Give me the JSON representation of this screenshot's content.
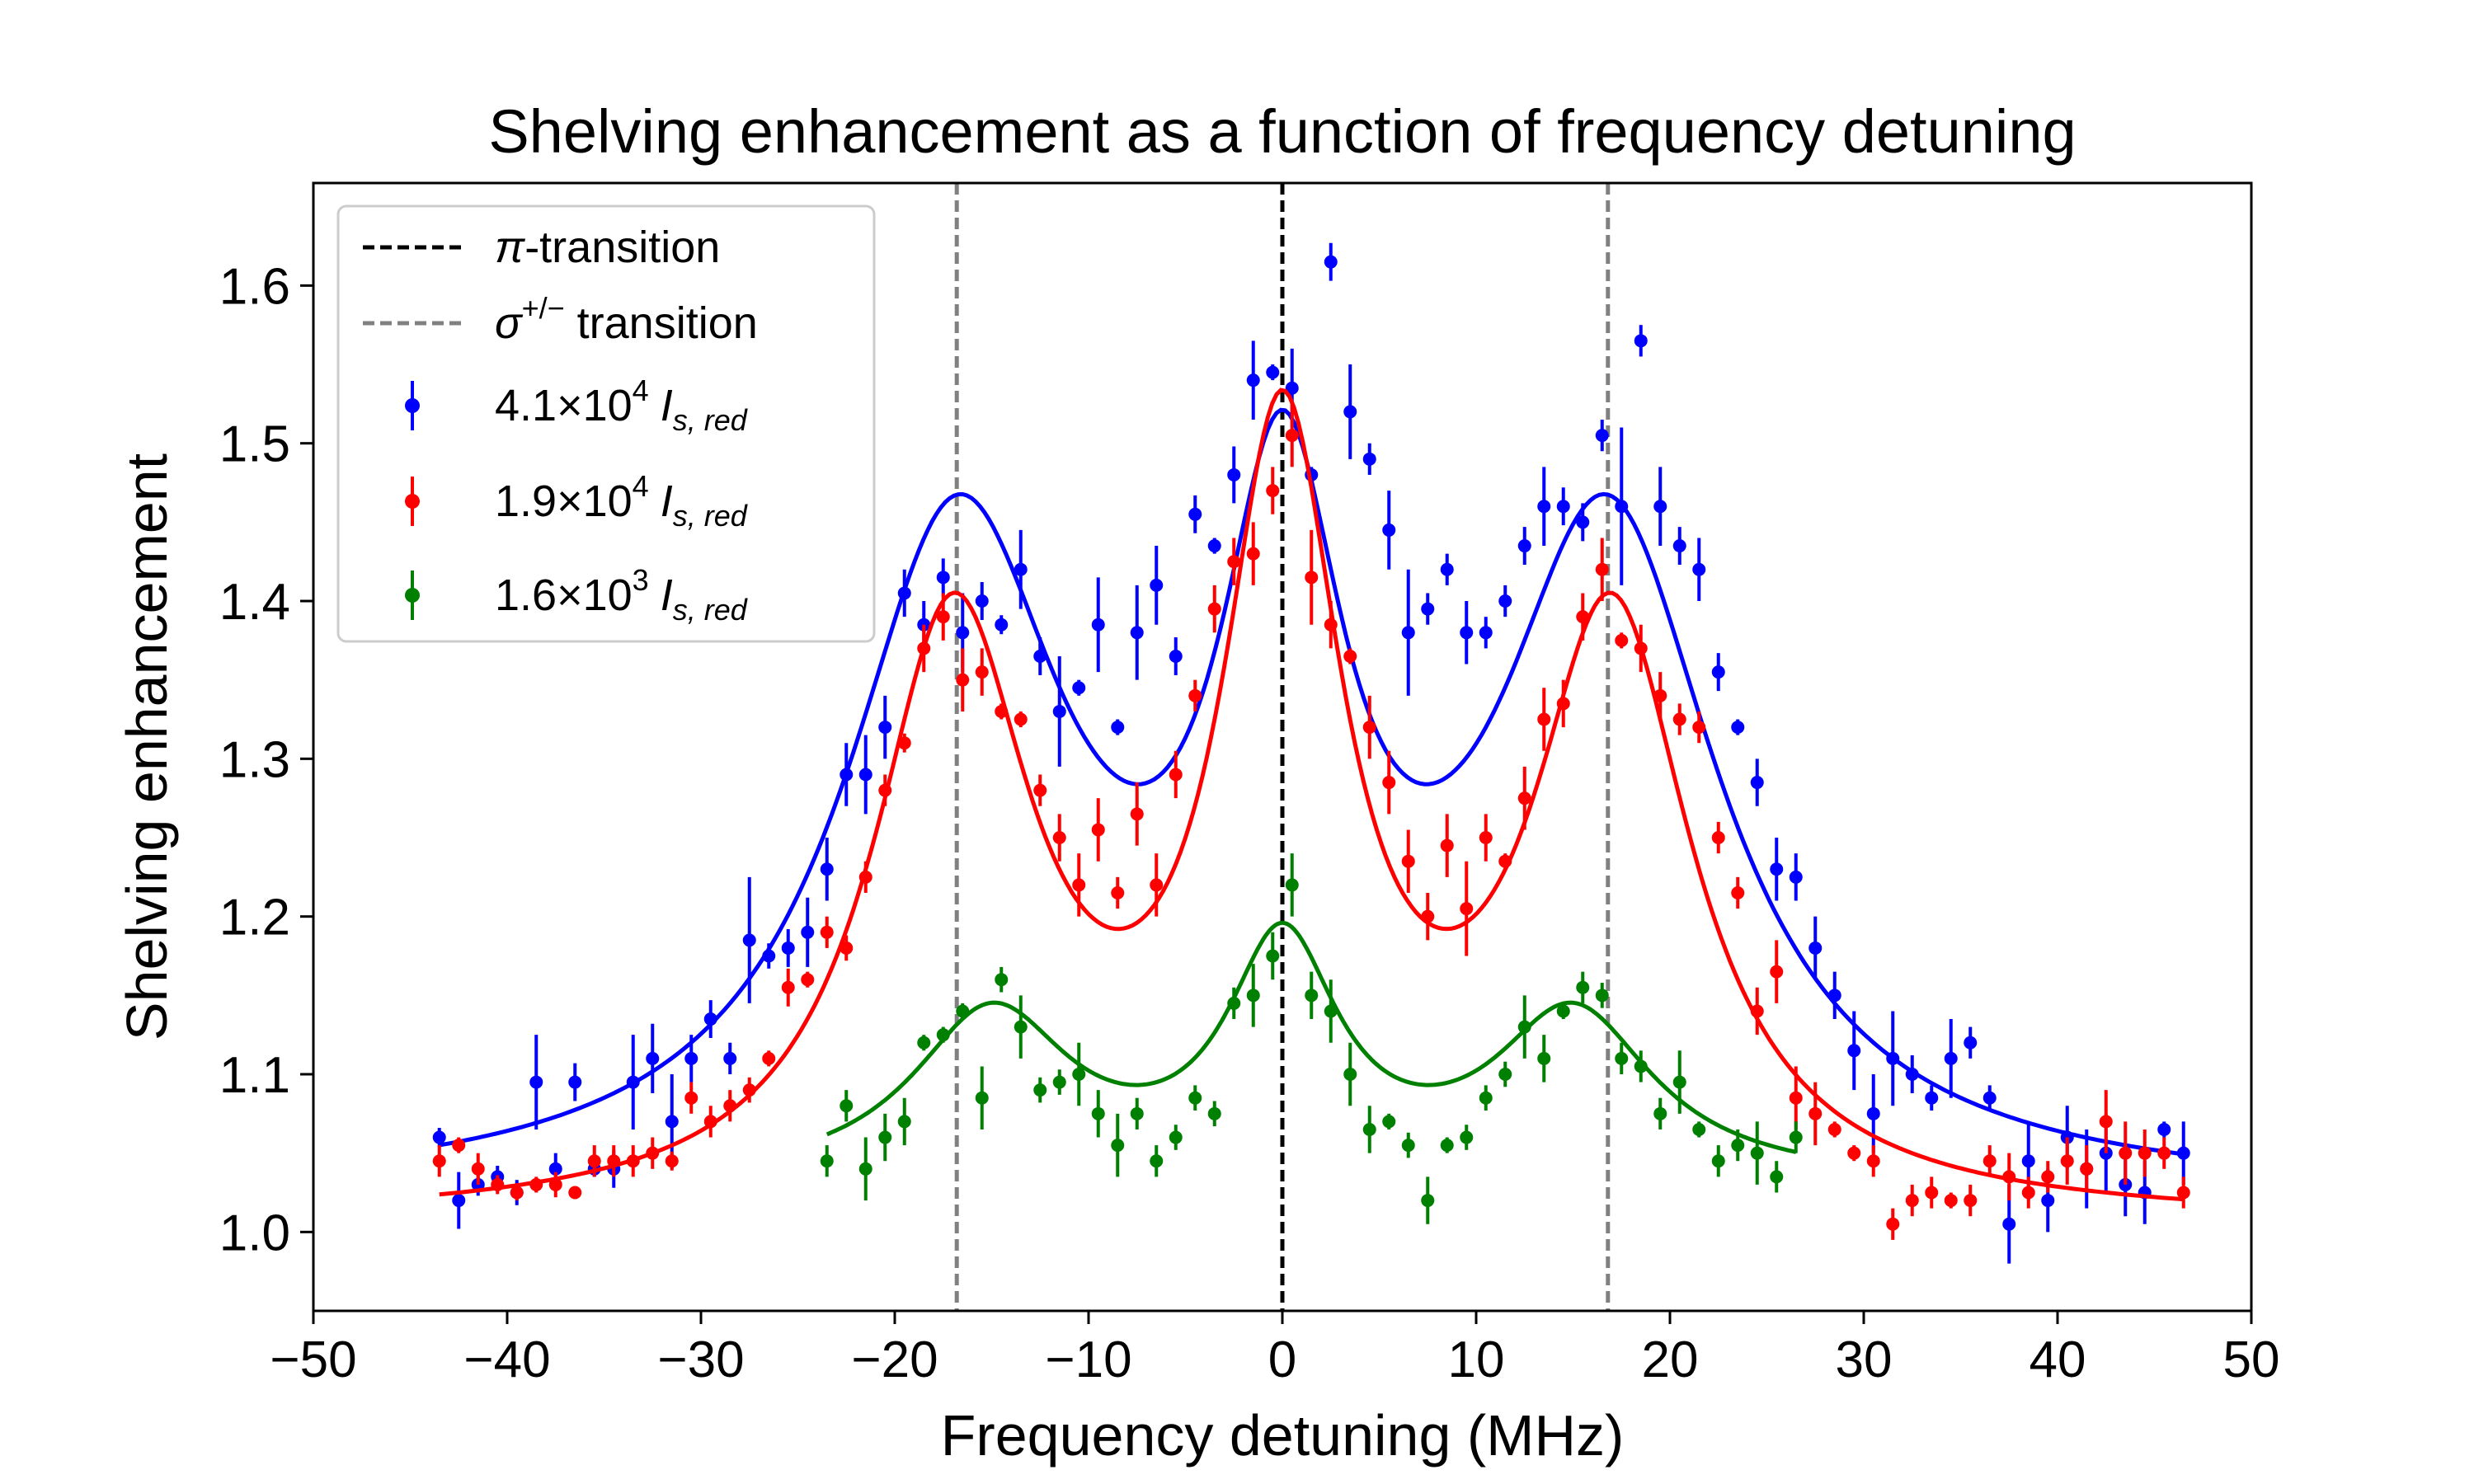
{
  "chart_data": {
    "type": "scatter",
    "title": "Shelving enhancement as a function of frequency detuning",
    "xlabel": "Frequency detuning (MHz)",
    "ylabel": "Shelving enhancement",
    "xlim": [
      -50,
      50
    ],
    "ylim": [
      0.95,
      1.665
    ],
    "xticks": [
      -50,
      -40,
      -30,
      -20,
      -10,
      0,
      10,
      20,
      30,
      40,
      50
    ],
    "xtick_labels": [
      "−50",
      "−40",
      "−30",
      "−20",
      "−10",
      "0",
      "10",
      "20",
      "30",
      "40",
      "50"
    ],
    "yticks": [
      1.0,
      1.1,
      1.2,
      1.3,
      1.4,
      1.5,
      1.6
    ],
    "ytick_labels": [
      "1.0",
      "1.1",
      "1.2",
      "1.3",
      "1.4",
      "1.5",
      "1.6"
    ],
    "grid": false,
    "legend_position": "top-left",
    "reference_lines": [
      {
        "name": "π-transition",
        "x": 0,
        "color": "#000000",
        "style": "dashed"
      },
      {
        "name": "σ+/− transition",
        "x": -16.8,
        "color": "#808080",
        "style": "dashed"
      },
      {
        "name": "σ+/− transition",
        "x": 16.8,
        "color": "#808080",
        "style": "dashed"
      }
    ],
    "legend": {
      "pi": {
        "symbol": "π",
        "rest": "-transition"
      },
      "sigma": {
        "symbol": "σ",
        "sup": "+/−",
        "rest": " transition"
      },
      "series": [
        {
          "coef": "4.1×10",
          "exp": "4",
          "i": "I",
          "sub": "s, red"
        },
        {
          "coef": "1.9×10",
          "exp": "4",
          "i": "I",
          "sub": "s, red"
        },
        {
          "coef": "1.6×10",
          "exp": "3",
          "i": "I",
          "sub": "s, red"
        }
      ]
    },
    "series": [
      {
        "name": "4.1×10^4 I_s,red",
        "color": "#0000ff",
        "fit": {
          "baseline": 1.02,
          "peaks": [
            {
              "center": -16.8,
              "amp": 0.41,
              "width": 7.0
            },
            {
              "center": 0.0,
              "amp": 0.38,
              "width": 4.0
            },
            {
              "center": 16.8,
              "amp": 0.41,
              "width": 7.0
            }
          ],
          "x_range": [
            -43.5,
            46.5
          ]
        },
        "x": [
          -43.5,
          -42.5,
          -41.5,
          -40.5,
          -39.5,
          -38.5,
          -37.5,
          -36.5,
          -35.5,
          -34.5,
          -33.5,
          -32.5,
          -31.5,
          -30.5,
          -29.5,
          -28.5,
          -27.5,
          -26.5,
          -25.5,
          -24.5,
          -23.5,
          -22.5,
          -21.5,
          -20.5,
          -19.5,
          -18.5,
          -17.5,
          -16.5,
          -15.5,
          -14.5,
          -13.5,
          -12.5,
          -11.5,
          -10.5,
          -9.5,
          -8.5,
          -7.5,
          -6.5,
          -5.5,
          -4.5,
          -3.5,
          -2.5,
          -1.5,
          -0.5,
          0.5,
          1.5,
          2.5,
          3.5,
          4.5,
          5.5,
          6.5,
          7.5,
          8.5,
          9.5,
          10.5,
          11.5,
          12.5,
          13.5,
          14.5,
          15.5,
          16.5,
          17.5,
          18.5,
          19.5,
          20.5,
          21.5,
          22.5,
          23.5,
          24.5,
          25.5,
          26.5,
          27.5,
          28.5,
          29.5,
          30.5,
          31.5,
          32.5,
          33.5,
          34.5,
          35.5,
          36.5,
          37.5,
          38.5,
          39.5,
          40.5,
          41.5,
          42.5,
          43.5,
          44.5,
          45.5,
          46.5
        ],
        "y": [
          1.06,
          1.02,
          1.03,
          1.035,
          1.025,
          1.095,
          1.04,
          1.095,
          1.04,
          1.04,
          1.095,
          1.11,
          1.07,
          1.11,
          1.135,
          1.11,
          1.185,
          1.175,
          1.18,
          1.19,
          1.23,
          1.29,
          1.29,
          1.32,
          1.405,
          1.385,
          1.415,
          1.38,
          1.4,
          1.385,
          1.42,
          1.365,
          1.33,
          1.345,
          1.385,
          1.32,
          1.38,
          1.41,
          1.365,
          1.455,
          1.435,
          1.48,
          1.54,
          1.545,
          1.535,
          1.48,
          1.615,
          1.52,
          1.49,
          1.445,
          1.38,
          1.395,
          1.42,
          1.38,
          1.38,
          1.4,
          1.435,
          1.46,
          1.46,
          1.45,
          1.505,
          1.46,
          1.565,
          1.46,
          1.435,
          1.42,
          1.355,
          1.32,
          1.285,
          1.23,
          1.225,
          1.18,
          1.15,
          1.115,
          1.075,
          1.11,
          1.1,
          1.085,
          1.11,
          1.12,
          1.085,
          1.005,
          1.045,
          1.02,
          1.06,
          1.04,
          1.05,
          1.03,
          1.025,
          1.065,
          1.05
        ],
        "err": [
          0.006,
          0.018,
          0.007,
          0.007,
          0.008,
          0.03,
          0.01,
          0.012,
          0.005,
          0.012,
          0.03,
          0.022,
          0.03,
          0.015,
          0.012,
          0.01,
          0.04,
          0.008,
          0.012,
          0.022,
          0.02,
          0.02,
          0.025,
          0.02,
          0.015,
          0.015,
          0.012,
          0.025,
          0.012,
          0.006,
          0.025,
          0.012,
          0.035,
          0.005,
          0.03,
          0.005,
          0.03,
          0.025,
          0.012,
          0.012,
          0.005,
          0.018,
          0.025,
          0.005,
          0.025,
          0.005,
          0.012,
          0.03,
          0.01,
          0.025,
          0.04,
          0.01,
          0.01,
          0.02,
          0.01,
          0.01,
          0.012,
          0.025,
          0.012,
          0.012,
          0.01,
          0.05,
          0.01,
          0.025,
          0.012,
          0.02,
          0.012,
          0.005,
          0.015,
          0.02,
          0.015,
          0.02,
          0.015,
          0.025,
          0.025,
          0.03,
          0.012,
          0.008,
          0.025,
          0.01,
          0.008,
          0.025,
          0.025,
          0.02,
          0.02,
          0.025,
          0.025,
          0.02,
          0.02,
          0.005,
          0.02
        ]
      },
      {
        "name": "1.9×10^4 I_s,red",
        "color": "#ff0000",
        "fit": {
          "baseline": 1.005,
          "peaks": [
            {
              "center": -17.0,
              "amp": 0.37,
              "width": 5.0
            },
            {
              "center": 0.0,
              "amp": 0.47,
              "width": 3.8
            },
            {
              "center": 17.0,
              "amp": 0.37,
              "width": 5.0
            }
          ],
          "x_range": [
            -43.5,
            46.5
          ]
        },
        "x": [
          -43.5,
          -42.5,
          -41.5,
          -40.5,
          -39.5,
          -38.5,
          -37.5,
          -36.5,
          -35.5,
          -34.5,
          -33.5,
          -32.5,
          -31.5,
          -30.5,
          -29.5,
          -28.5,
          -27.5,
          -26.5,
          -25.5,
          -24.5,
          -23.5,
          -22.5,
          -21.5,
          -20.5,
          -19.5,
          -18.5,
          -17.5,
          -16.5,
          -15.5,
          -14.5,
          -13.5,
          -12.5,
          -11.5,
          -10.5,
          -9.5,
          -8.5,
          -7.5,
          -6.5,
          -5.5,
          -4.5,
          -3.5,
          -2.5,
          -1.5,
          -0.5,
          0.5,
          1.5,
          2.5,
          3.5,
          4.5,
          5.5,
          6.5,
          7.5,
          8.5,
          9.5,
          10.5,
          11.5,
          12.5,
          13.5,
          14.5,
          15.5,
          16.5,
          17.5,
          18.5,
          19.5,
          20.5,
          21.5,
          22.5,
          23.5,
          24.5,
          25.5,
          26.5,
          27.5,
          28.5,
          29.5,
          30.5,
          31.5,
          32.5,
          33.5,
          34.5,
          35.5,
          36.5,
          37.5,
          38.5,
          39.5,
          40.5,
          41.5,
          42.5,
          43.5,
          44.5,
          45.5,
          46.5
        ],
        "y": [
          1.045,
          1.055,
          1.04,
          1.03,
          1.025,
          1.03,
          1.03,
          1.025,
          1.045,
          1.045,
          1.045,
          1.05,
          1.045,
          1.085,
          1.07,
          1.08,
          1.09,
          1.11,
          1.155,
          1.16,
          1.19,
          1.18,
          1.225,
          1.28,
          1.31,
          1.37,
          1.39,
          1.35,
          1.355,
          1.33,
          1.325,
          1.28,
          1.25,
          1.22,
          1.255,
          1.215,
          1.265,
          1.22,
          1.29,
          1.34,
          1.395,
          1.425,
          1.43,
          1.47,
          1.505,
          1.415,
          1.385,
          1.365,
          1.32,
          1.285,
          1.235,
          1.2,
          1.245,
          1.205,
          1.25,
          1.235,
          1.275,
          1.325,
          1.335,
          1.39,
          1.42,
          1.375,
          1.37,
          1.34,
          1.325,
          1.32,
          1.25,
          1.215,
          1.14,
          1.165,
          1.085,
          1.075,
          1.065,
          1.05,
          1.045,
          1.005,
          1.02,
          1.025,
          1.02,
          1.02,
          1.045,
          1.035,
          1.025,
          1.035,
          1.045,
          1.04,
          1.07,
          1.05,
          1.05,
          1.05,
          1.025
        ],
        "err": [
          0.01,
          0.005,
          0.01,
          0.006,
          0.005,
          0.005,
          0.008,
          0.004,
          0.01,
          0.01,
          0.01,
          0.01,
          0.006,
          0.01,
          0.01,
          0.01,
          0.008,
          0.005,
          0.012,
          0.005,
          0.01,
          0.008,
          0.01,
          0.01,
          0.006,
          0.015,
          0.015,
          0.02,
          0.015,
          0.005,
          0.005,
          0.01,
          0.015,
          0.02,
          0.02,
          0.01,
          0.02,
          0.02,
          0.015,
          0.01,
          0.015,
          0.015,
          0.02,
          0.015,
          0.02,
          0.03,
          0.015,
          0.005,
          0.02,
          0.02,
          0.02,
          0.015,
          0.02,
          0.03,
          0.015,
          0.005,
          0.02,
          0.02,
          0.015,
          0.015,
          0.02,
          0.005,
          0.015,
          0.015,
          0.01,
          0.01,
          0.01,
          0.01,
          0.015,
          0.02,
          0.02,
          0.02,
          0.005,
          0.005,
          0.01,
          0.01,
          0.01,
          0.01,
          0.005,
          0.01,
          0.01,
          0.015,
          0.01,
          0.01,
          0.015,
          0.015,
          0.02,
          0.02,
          0.015,
          0.01,
          0.01
        ]
      },
      {
        "name": "1.6×10^3 I_s,red",
        "color": "#008000",
        "fit": {
          "baseline": 1.03,
          "peaks": [
            {
              "center": -15.0,
              "amp": 0.105,
              "width": 5.0
            },
            {
              "center": 0.0,
              "amp": 0.145,
              "width": 3.5
            },
            {
              "center": 15.0,
              "amp": 0.105,
              "width": 5.0
            }
          ],
          "x_range": [
            -23.5,
            26.5
          ]
        },
        "x": [
          -23.5,
          -22.5,
          -21.5,
          -20.5,
          -19.5,
          -18.5,
          -17.5,
          -16.5,
          -15.5,
          -14.5,
          -13.5,
          -12.5,
          -11.5,
          -10.5,
          -9.5,
          -8.5,
          -7.5,
          -6.5,
          -5.5,
          -4.5,
          -3.5,
          -2.5,
          -1.5,
          -0.5,
          0.5,
          1.5,
          2.5,
          3.5,
          4.5,
          5.5,
          6.5,
          7.5,
          8.5,
          9.5,
          10.5,
          11.5,
          12.5,
          13.5,
          14.5,
          15.5,
          16.5,
          17.5,
          18.5,
          19.5,
          20.5,
          21.5,
          22.5,
          23.5,
          24.5,
          25.5,
          26.5
        ],
        "y": [
          1.045,
          1.08,
          1.04,
          1.06,
          1.07,
          1.12,
          1.125,
          1.14,
          1.085,
          1.16,
          1.13,
          1.09,
          1.095,
          1.1,
          1.075,
          1.055,
          1.075,
          1.045,
          1.06,
          1.085,
          1.075,
          1.145,
          1.15,
          1.175,
          1.22,
          1.15,
          1.14,
          1.1,
          1.065,
          1.07,
          1.055,
          1.02,
          1.055,
          1.06,
          1.085,
          1.1,
          1.13,
          1.11,
          1.14,
          1.155,
          1.15,
          1.11,
          1.105,
          1.075,
          1.095,
          1.065,
          1.045,
          1.055,
          1.05,
          1.035,
          1.06
        ],
        "err": [
          0.01,
          0.01,
          0.02,
          0.015,
          0.015,
          0.005,
          0.005,
          0.005,
          0.02,
          0.008,
          0.02,
          0.008,
          0.008,
          0.02,
          0.015,
          0.02,
          0.01,
          0.01,
          0.008,
          0.008,
          0.008,
          0.01,
          0.02,
          0.015,
          0.02,
          0.015,
          0.02,
          0.02,
          0.015,
          0.005,
          0.008,
          0.015,
          0.005,
          0.008,
          0.008,
          0.008,
          0.02,
          0.015,
          0.005,
          0.01,
          0.008,
          0.01,
          0.01,
          0.01,
          0.02,
          0.005,
          0.01,
          0.01,
          0.02,
          0.01,
          0.01
        ]
      }
    ]
  }
}
